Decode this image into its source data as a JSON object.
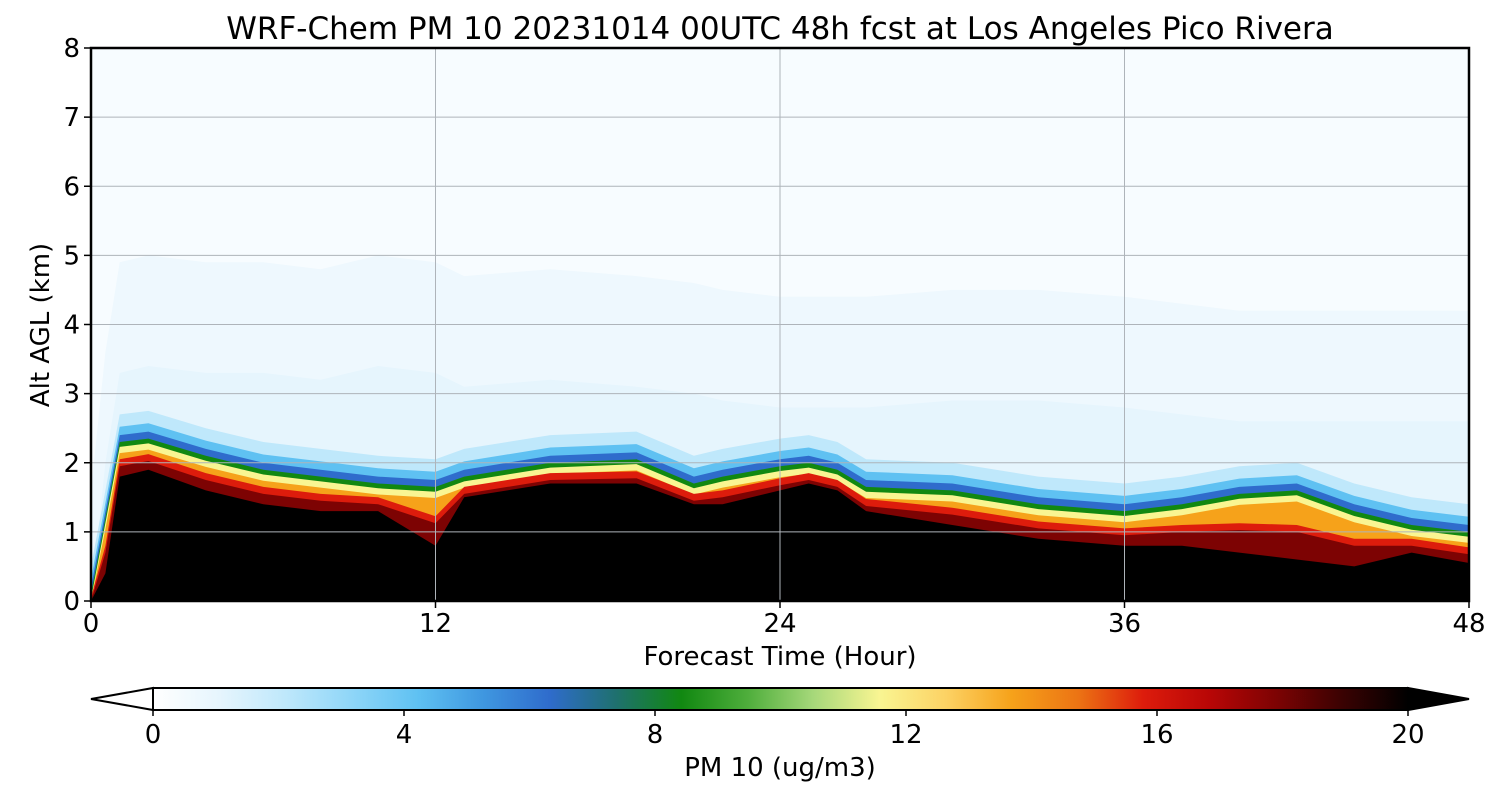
{
  "chart_data": {
    "type": "heatmap",
    "title": "WRF-Chem PM 10  20231014 00UTC 48h fcst at Los Angeles Pico Rivera",
    "xlabel": "Forecast Time (Hour)",
    "ylabel": "Alt AGL (km)",
    "xlim": [
      0,
      48
    ],
    "ylim": [
      0,
      8
    ],
    "x_ticks": [
      "0",
      "12",
      "24",
      "36",
      "48"
    ],
    "y_ticks": [
      "0",
      "1",
      "2",
      "3",
      "4",
      "5",
      "6",
      "7",
      "8"
    ],
    "grid": true,
    "colorbar": {
      "label": "PM 10  (ug/m3)",
      "range": [
        0,
        20
      ],
      "ticks": [
        "0",
        "4",
        "8",
        "12",
        "16",
        "20"
      ],
      "extend": "both",
      "colors": [
        "#ffffff",
        "#e6f5fd",
        "#bfe8fb",
        "#8fd6f8",
        "#5fc1f2",
        "#3f97e0",
        "#2f6ccc",
        "#1f7070",
        "#118811",
        "#4fae3c",
        "#a6d87a",
        "#f9f592",
        "#fcd264",
        "#f6a21a",
        "#ec7414",
        "#dd1c0c",
        "#b80606",
        "#7d0303",
        "#3b0202",
        "#000000"
      ]
    },
    "profile_x": [
      0,
      0.5,
      1,
      2,
      4,
      6,
      8,
      10,
      12,
      13,
      16,
      19,
      21,
      22,
      24,
      25,
      26,
      27,
      30,
      33,
      36,
      38,
      40,
      42,
      44,
      46,
      48
    ],
    "plume_top_km": [
      0,
      1.1,
      2.2,
      2.25,
      2.0,
      1.8,
      1.7,
      1.6,
      1.55,
      1.7,
      1.9,
      1.95,
      1.6,
      1.7,
      1.85,
      1.9,
      1.8,
      1.55,
      1.5,
      1.3,
      1.2,
      1.3,
      1.45,
      1.5,
      1.2,
      1.0,
      0.9
    ],
    "core_top_km": [
      0,
      0.4,
      1.8,
      1.9,
      1.6,
      1.4,
      1.3,
      1.3,
      0.8,
      1.5,
      1.7,
      1.7,
      1.4,
      1.4,
      1.6,
      1.7,
      1.6,
      1.3,
      1.1,
      0.9,
      0.8,
      0.8,
      0.7,
      0.6,
      0.5,
      0.7,
      0.55
    ],
    "haze_top_km": [
      0,
      2.0,
      3.3,
      3.4,
      3.3,
      3.3,
      3.2,
      3.4,
      3.3,
      3.1,
      3.2,
      3.1,
      3.0,
      2.9,
      2.8,
      2.8,
      2.8,
      2.8,
      2.9,
      2.9,
      2.8,
      2.7,
      2.6,
      2.6,
      2.6,
      2.6,
      2.6
    ]
  }
}
